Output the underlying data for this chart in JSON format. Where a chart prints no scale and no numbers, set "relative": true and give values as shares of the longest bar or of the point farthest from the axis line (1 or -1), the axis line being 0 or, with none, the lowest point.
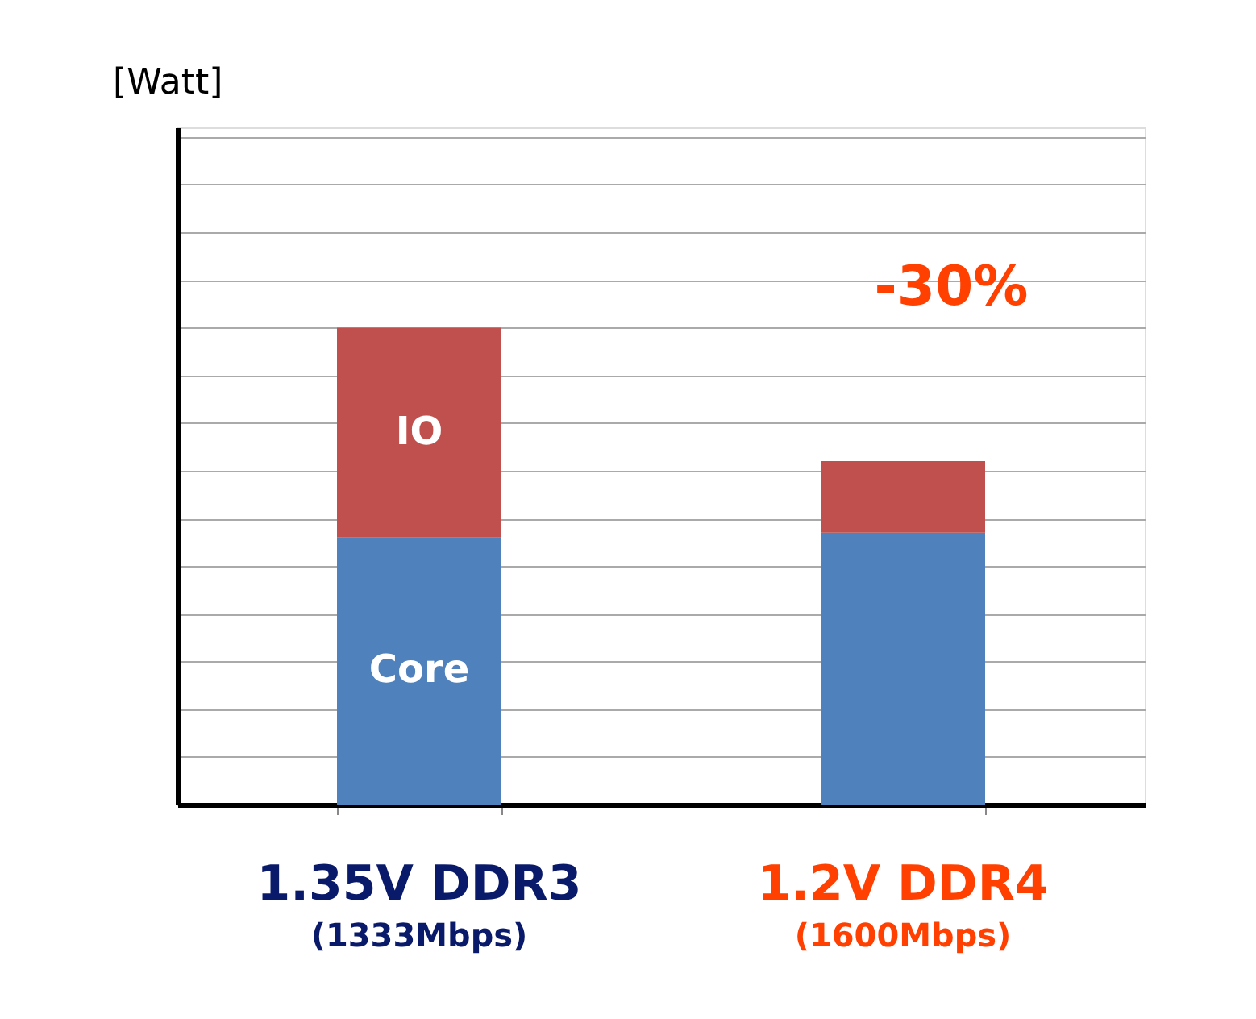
{
  "chart_data": {
    "type": "bar",
    "stacked": true,
    "relative": true,
    "categories": [
      "1.35V DDR3\n(1333Mbps)",
      "1.2V DDR4\n(1600Mbps)"
    ],
    "series": [
      {
        "name": "Core",
        "color": "#4f81bd",
        "values": [
          0.56,
          0.57
        ]
      },
      {
        "name": "IO",
        "color": "#c0504d",
        "values": [
          0.44,
          0.15
        ]
      }
    ],
    "annotations": [
      "[Watt]",
      "-30%"
    ],
    "grid": "y",
    "legend": false
  }
}
